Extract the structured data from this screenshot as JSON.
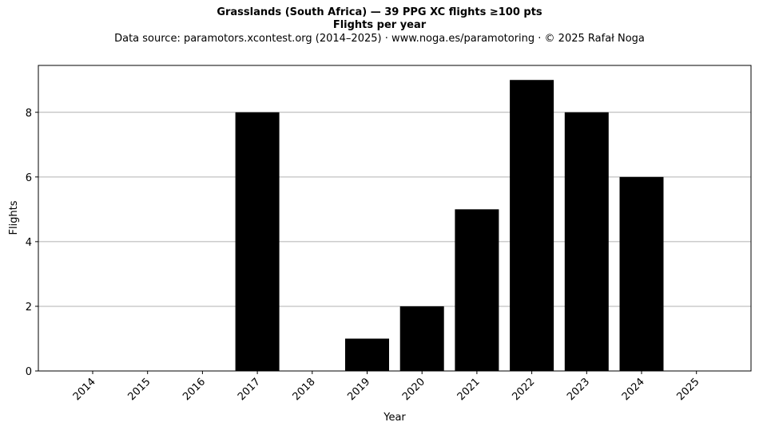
{
  "header": {
    "title": "Grasslands (South Africa)  —  39 PPG XC flights ≥100 pts",
    "subtitle": "Flights per year",
    "source": "Data source: paramotors.xcontest.org (2014–2025)  ·  www.noga.es/paramotoring  ·  © 2025 Rafał Noga"
  },
  "chart_data": {
    "type": "bar",
    "title": "Grasslands (South Africa)  —  39 PPG XC flights ≥100 pts",
    "subtitle": "Flights per year",
    "xlabel": "Year",
    "ylabel": "Flights",
    "categories": [
      "2014",
      "2015",
      "2016",
      "2017",
      "2018",
      "2019",
      "2020",
      "2021",
      "2022",
      "2023",
      "2024",
      "2025"
    ],
    "values": [
      0,
      0,
      0,
      8,
      0,
      1,
      2,
      5,
      9,
      8,
      6,
      0
    ],
    "ylim": [
      0,
      9.45
    ],
    "yticks": [
      0,
      2,
      4,
      6,
      8
    ],
    "grid": "horizontal",
    "bar_color": "#000000",
    "grid_color": "#b0b0b0"
  }
}
